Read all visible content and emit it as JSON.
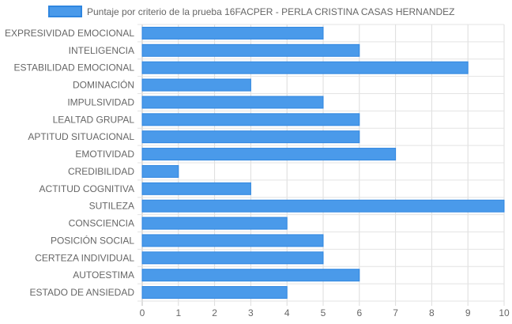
{
  "chart_data": {
    "type": "bar",
    "orientation": "horizontal",
    "legend_position": "top",
    "grid": true,
    "xlim": [
      0,
      10
    ],
    "x_ticks": [
      "0",
      "1",
      "2",
      "3",
      "4",
      "5",
      "6",
      "7",
      "8",
      "9",
      "10"
    ],
    "categories": [
      "EXPRESIVIDAD EMOCIONAL",
      "INTELIGENCIA",
      "ESTABILIDAD EMOCIONAL",
      "DOMINACIÓN",
      "IMPULSIVIDAD",
      "LEALTAD GRUPAL",
      "APTITUD SITUACIONAL",
      "EMOTIVIDAD",
      "CREDIBILIDAD",
      "ACTITUD COGNITIVA",
      "SUTILEZA",
      "CONSCIENCIA",
      "POSICIÓN SOCIAL",
      "CERTEZA INDIVIDUAL",
      "AUTOESTIMA",
      "ESTADO DE ANSIEDAD"
    ],
    "series": [
      {
        "name": "Puntaje por criterio de la prueba 16FACPER - PERLA CRISTINA CASAS HERNANDEZ",
        "values": [
          5,
          6,
          9,
          3,
          5,
          6,
          6,
          7,
          1,
          3,
          10,
          4,
          5,
          5,
          6,
          4
        ],
        "color": "#4a9aea",
        "border_color": "#2f86e0"
      }
    ]
  }
}
